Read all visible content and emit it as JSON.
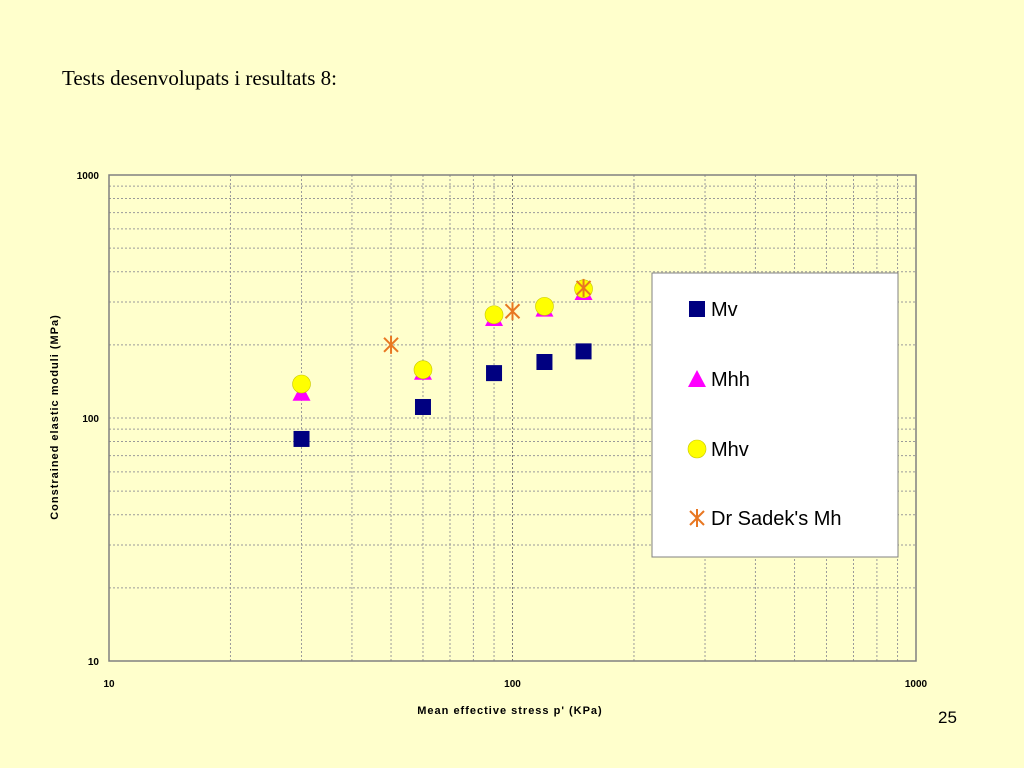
{
  "slide": {
    "title": "Tests desenvolupats i resultats 8:",
    "page_number": "25"
  },
  "chart_data": {
    "type": "scatter",
    "xlabel": "Mean effective stress p' (KPa)",
    "ylabel": "Constrained elastic moduli (MPa)",
    "xscale": "log",
    "yscale": "log",
    "xlim": [
      10,
      1000
    ],
    "ylim": [
      10,
      1000
    ],
    "x_ticks": [
      "10",
      "100",
      "1000"
    ],
    "y_ticks": [
      "10",
      "100",
      "1000"
    ],
    "grid": true,
    "legend_position": "right",
    "series": [
      {
        "name": "Mv",
        "marker": "square",
        "color": "#000080",
        "points": [
          [
            30,
            82
          ],
          [
            60,
            111
          ],
          [
            90,
            153
          ],
          [
            120,
            170
          ],
          [
            150,
            188
          ]
        ]
      },
      {
        "name": "Mhh",
        "marker": "triangle",
        "color": "#ff00ff",
        "points": [
          [
            30,
            127
          ],
          [
            60,
            155
          ],
          [
            90,
            258
          ],
          [
            120,
            282
          ],
          [
            150,
            330
          ]
        ]
      },
      {
        "name": "Mhv",
        "marker": "circle",
        "color": "#ffff00",
        "points": [
          [
            30,
            138
          ],
          [
            60,
            158
          ],
          [
            90,
            266
          ],
          [
            120,
            288
          ],
          [
            150,
            340
          ]
        ]
      },
      {
        "name": "Dr Sadek's Mh",
        "marker": "asterisk",
        "color": "#e87722",
        "points": [
          [
            50,
            200
          ],
          [
            100,
            275
          ],
          [
            150,
            343
          ]
        ]
      }
    ]
  }
}
